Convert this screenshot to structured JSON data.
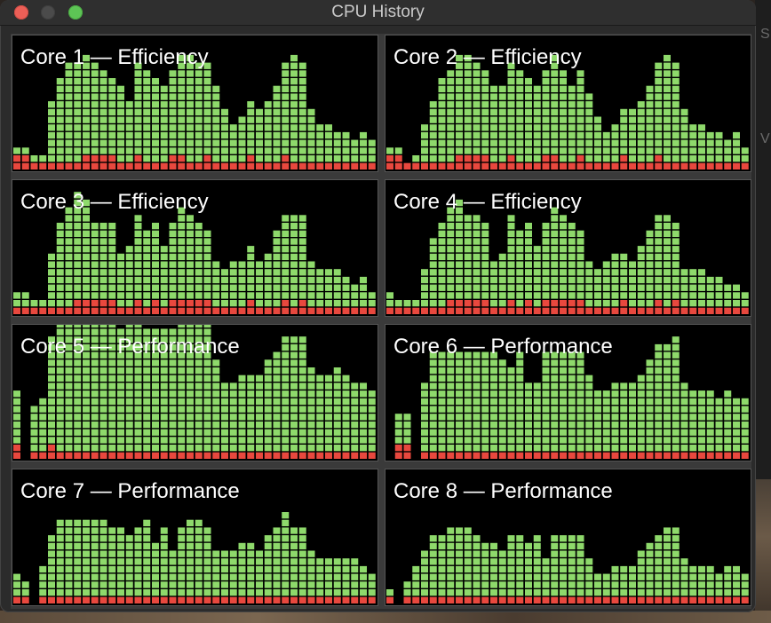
{
  "window": {
    "title": "CPU History"
  },
  "background_fragments": [
    "S",
    "V"
  ],
  "colors": {
    "user": "#8ed96b",
    "system": "#e8483e",
    "panel_bg": "#000000"
  },
  "chart_data": [
    {
      "type": "bar",
      "title": "Core 1 — Efficiency",
      "series": [
        {
          "values": [
            2,
            2,
            1,
            1,
            1,
            1,
            1,
            1,
            2,
            2,
            2,
            2,
            1,
            1,
            2,
            1,
            1,
            1,
            2,
            2,
            1,
            1,
            2,
            1,
            1,
            1,
            1,
            2,
            1,
            1,
            1,
            2,
            1,
            1,
            1,
            1,
            1,
            1,
            1,
            1,
            1,
            1
          ]
        },
        {
          "values": [
            1,
            1,
            1,
            1,
            8,
            11,
            13,
            13,
            13,
            12,
            11,
            10,
            10,
            8,
            12,
            12,
            11,
            10,
            11,
            13,
            14,
            13,
            12,
            10,
            7,
            5,
            6,
            7,
            7,
            8,
            10,
            12,
            14,
            13,
            7,
            5,
            5,
            4,
            4,
            3,
            4,
            3
          ]
        }
      ]
    },
    {
      "type": "bar",
      "title": "Core 2 — Efficiency",
      "series": [
        {
          "values": [
            2,
            2,
            1,
            1,
            1,
            1,
            1,
            1,
            2,
            2,
            2,
            2,
            1,
            1,
            2,
            1,
            1,
            1,
            2,
            2,
            1,
            1,
            2,
            1,
            1,
            1,
            1,
            2,
            1,
            1,
            1,
            2,
            1,
            1,
            1,
            1,
            1,
            1,
            1,
            1,
            1,
            1
          ]
        },
        {
          "values": [
            1,
            1,
            0,
            1,
            5,
            8,
            11,
            12,
            13,
            13,
            12,
            11,
            10,
            10,
            12,
            12,
            11,
            10,
            11,
            13,
            12,
            10,
            11,
            9,
            6,
            4,
            5,
            6,
            7,
            8,
            10,
            12,
            14,
            13,
            7,
            5,
            5,
            4,
            4,
            3,
            4,
            2
          ]
        }
      ]
    },
    {
      "type": "bar",
      "title": "Core 3 — Efficiency",
      "series": [
        {
          "values": [
            1,
            1,
            1,
            1,
            1,
            1,
            1,
            2,
            2,
            2,
            2,
            2,
            1,
            1,
            2,
            1,
            2,
            1,
            2,
            2,
            2,
            2,
            2,
            1,
            1,
            1,
            1,
            2,
            1,
            1,
            1,
            2,
            1,
            2,
            1,
            1,
            1,
            1,
            1,
            1,
            1,
            1
          ]
        },
        {
          "values": [
            2,
            2,
            1,
            1,
            7,
            11,
            13,
            14,
            13,
            10,
            10,
            10,
            7,
            8,
            11,
            10,
            10,
            8,
            10,
            12,
            11,
            10,
            9,
            6,
            5,
            6,
            6,
            7,
            6,
            7,
            10,
            11,
            12,
            11,
            6,
            5,
            5,
            5,
            4,
            3,
            4,
            2
          ]
        }
      ]
    },
    {
      "type": "bar",
      "title": "Core 4 — Efficiency",
      "series": [
        {
          "values": [
            1,
            1,
            1,
            1,
            1,
            1,
            1,
            2,
            2,
            2,
            2,
            2,
            1,
            1,
            2,
            1,
            2,
            1,
            2,
            2,
            2,
            2,
            2,
            1,
            1,
            1,
            1,
            2,
            1,
            1,
            1,
            2,
            1,
            2,
            1,
            1,
            1,
            1,
            1,
            1,
            1,
            1
          ]
        },
        {
          "values": [
            2,
            1,
            1,
            1,
            5,
            9,
            11,
            12,
            13,
            11,
            11,
            10,
            6,
            7,
            11,
            10,
            10,
            8,
            10,
            12,
            11,
            10,
            9,
            6,
            5,
            6,
            7,
            6,
            6,
            8,
            10,
            11,
            12,
            10,
            5,
            5,
            5,
            4,
            4,
            3,
            3,
            2
          ]
        }
      ]
    },
    {
      "type": "bar",
      "title": "Core 5 — Performance",
      "series": [
        {
          "values": [
            2,
            0,
            1,
            1,
            2,
            1,
            1,
            1,
            1,
            1,
            1,
            1,
            1,
            1,
            1,
            1,
            1,
            1,
            1,
            1,
            1,
            1,
            1,
            1,
            1,
            1,
            1,
            1,
            1,
            1,
            1,
            1,
            1,
            1,
            1,
            1,
            1,
            1,
            1,
            1,
            1,
            1
          ]
        },
        {
          "values": [
            7,
            0,
            6,
            7,
            14,
            17,
            17,
            17,
            17,
            17,
            17,
            17,
            16,
            17,
            17,
            16,
            16,
            16,
            16,
            17,
            17,
            17,
            17,
            12,
            9,
            9,
            10,
            10,
            10,
            12,
            13,
            15,
            15,
            15,
            11,
            10,
            10,
            11,
            10,
            9,
            9,
            8
          ]
        }
      ]
    },
    {
      "type": "bar",
      "title": "Core 6 — Performance",
      "series": [
        {
          "values": [
            0,
            2,
            2,
            0,
            1,
            1,
            1,
            1,
            1,
            1,
            1,
            1,
            1,
            1,
            1,
            1,
            1,
            1,
            1,
            1,
            1,
            1,
            1,
            1,
            1,
            1,
            1,
            1,
            1,
            1,
            1,
            1,
            1,
            1,
            1,
            1,
            1,
            1,
            1,
            1,
            1,
            1
          ]
        },
        {
          "values": [
            0,
            4,
            4,
            0,
            9,
            13,
            13,
            13,
            13,
            13,
            13,
            13,
            13,
            12,
            11,
            13,
            9,
            9,
            13,
            13,
            13,
            13,
            13,
            10,
            8,
            8,
            9,
            9,
            9,
            10,
            12,
            14,
            14,
            15,
            9,
            8,
            8,
            8,
            7,
            8,
            7,
            7
          ]
        }
      ]
    },
    {
      "type": "bar",
      "title": "Core 7 — Performance",
      "series": [
        {
          "values": [
            1,
            1,
            0,
            1,
            1,
            1,
            1,
            1,
            1,
            1,
            1,
            1,
            1,
            1,
            1,
            1,
            1,
            1,
            1,
            1,
            1,
            1,
            1,
            1,
            1,
            1,
            1,
            1,
            1,
            1,
            1,
            1,
            1,
            1,
            1,
            1,
            1,
            1,
            1,
            1,
            1,
            1
          ]
        },
        {
          "values": [
            3,
            2,
            0,
            4,
            8,
            10,
            10,
            10,
            10,
            10,
            10,
            9,
            9,
            8,
            9,
            10,
            7,
            9,
            6,
            9,
            10,
            10,
            9,
            6,
            6,
            6,
            7,
            7,
            6,
            8,
            9,
            11,
            9,
            9,
            6,
            5,
            5,
            5,
            5,
            5,
            4,
            3
          ]
        }
      ]
    },
    {
      "type": "bar",
      "title": "Core 8 — Performance",
      "series": [
        {
          "values": [
            1,
            0,
            1,
            1,
            1,
            1,
            1,
            1,
            1,
            1,
            1,
            1,
            1,
            1,
            1,
            1,
            1,
            1,
            1,
            1,
            1,
            1,
            1,
            1,
            1,
            1,
            1,
            1,
            1,
            1,
            1,
            1,
            1,
            1,
            1,
            1,
            1,
            1,
            1,
            1,
            1,
            1
          ]
        },
        {
          "values": [
            1,
            0,
            2,
            4,
            6,
            8,
            8,
            9,
            9,
            9,
            8,
            7,
            7,
            6,
            8,
            8,
            7,
            8,
            5,
            8,
            8,
            8,
            8,
            5,
            3,
            3,
            4,
            4,
            4,
            6,
            7,
            8,
            9,
            9,
            5,
            4,
            4,
            4,
            3,
            4,
            4,
            3
          ]
        }
      ]
    }
  ]
}
